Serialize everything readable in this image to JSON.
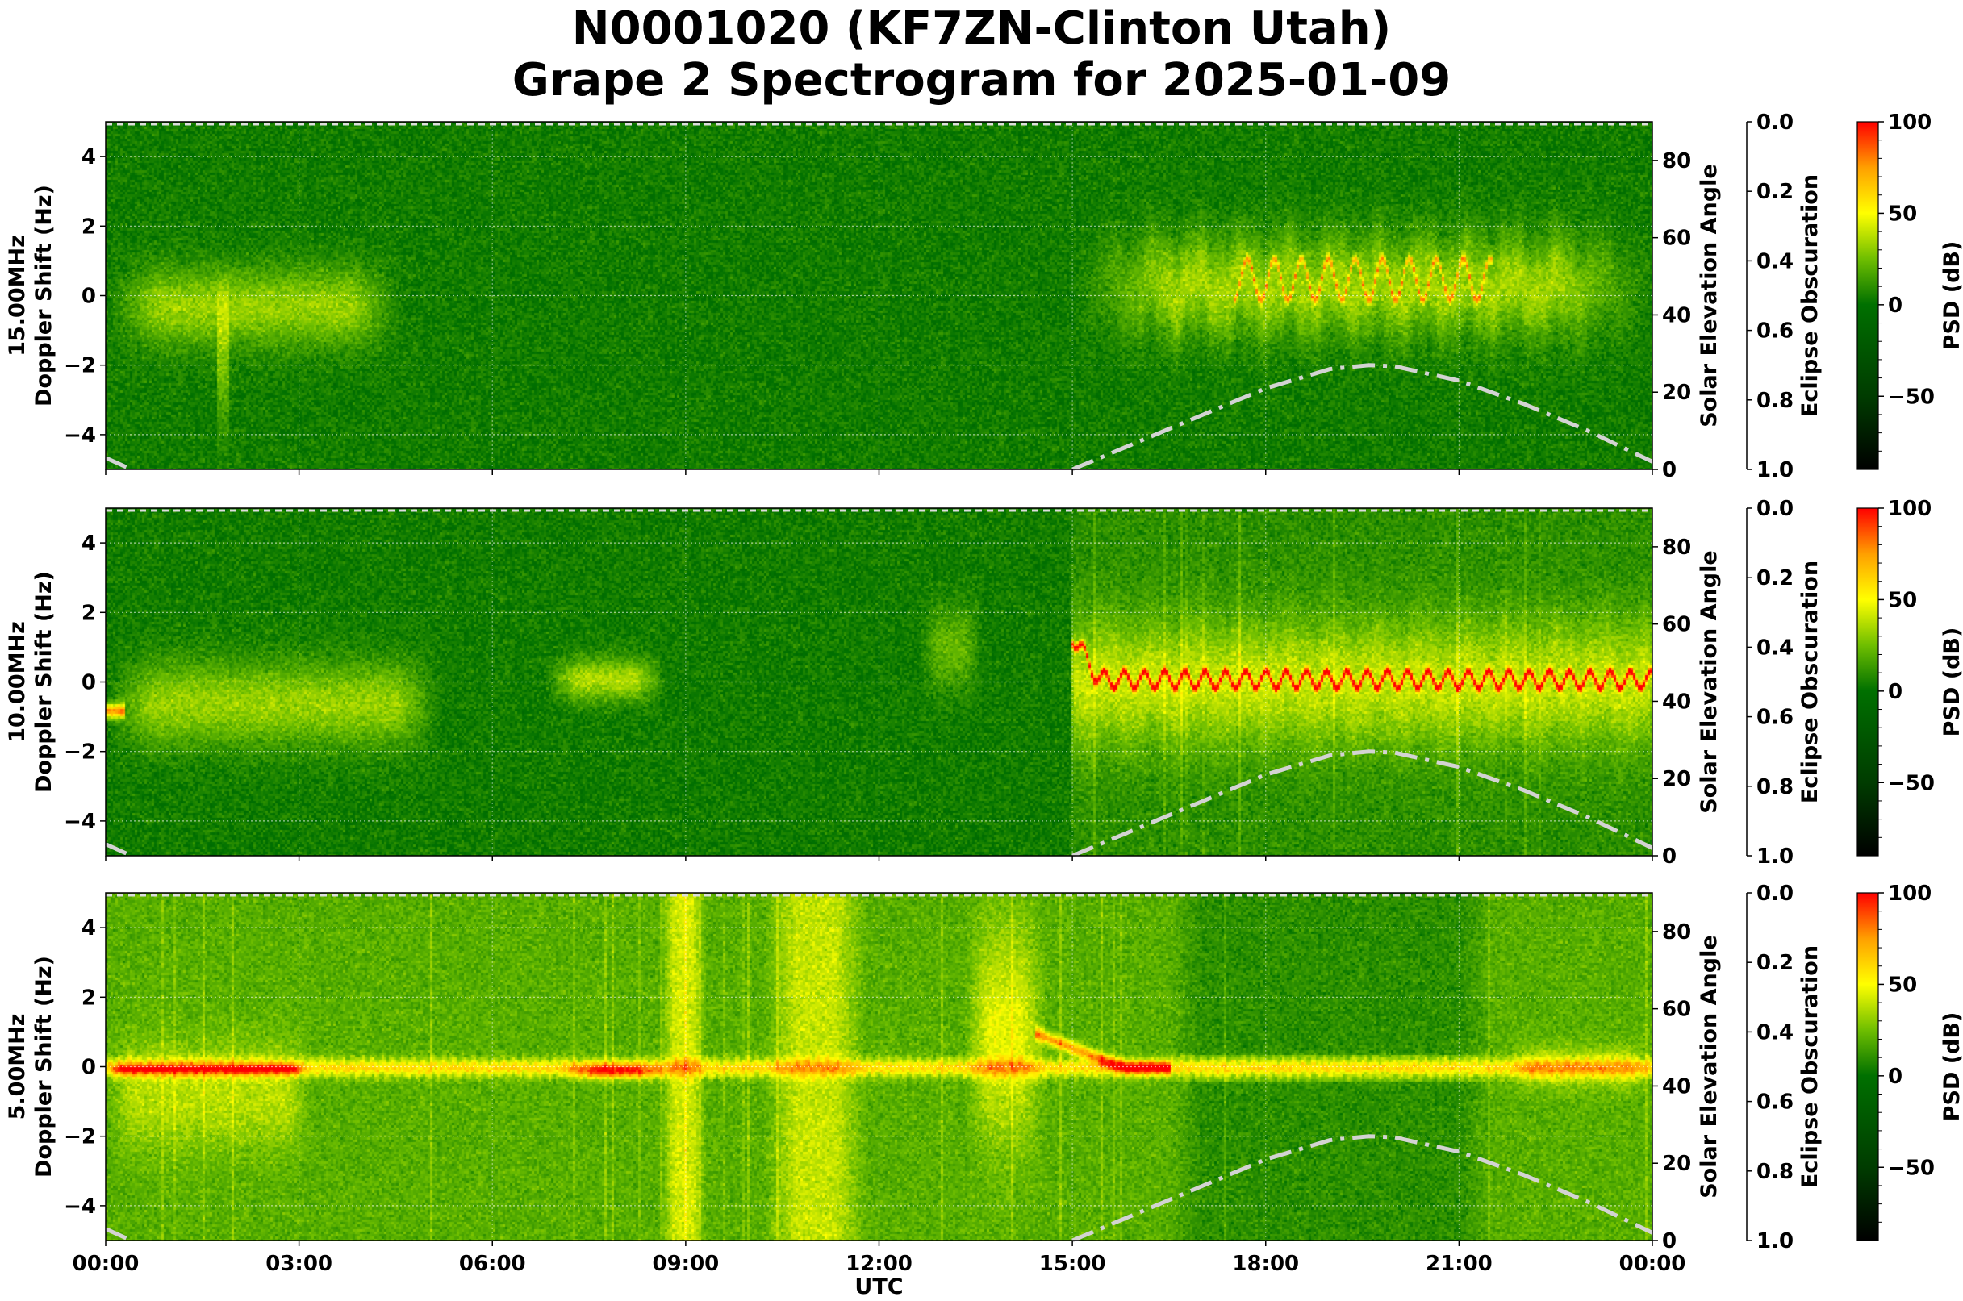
{
  "title": {
    "line1": "N0001020 (KF7ZN-Clinton Utah)",
    "line2": "Grape 2 Spectrogram for 2025-01-09"
  },
  "chart_data": {
    "type": "heatmap",
    "xlabel": "UTC",
    "x_ticks": [
      "00:00",
      "03:00",
      "06:00",
      "09:00",
      "12:00",
      "15:00",
      "18:00",
      "21:00",
      "00:00"
    ],
    "xlim_hours": [
      0,
      24
    ],
    "ylabel": "Doppler Shift (Hz)",
    "ylim": [
      -5,
      5
    ],
    "y_ticks": [
      "−4",
      "−2",
      "0",
      "2",
      "4"
    ],
    "grid": true,
    "right_axis": {
      "label": "Solar Elevation Angle",
      "ylim": [
        0,
        90
      ],
      "ticks": [
        "0",
        "20",
        "40",
        "60",
        "80"
      ]
    },
    "eclipse_axis": {
      "label": "Eclipse Obscuration",
      "ylim": [
        1.0,
        0.0
      ],
      "ticks": [
        "0.0",
        "0.2",
        "0.4",
        "0.6",
        "0.8",
        "1.0"
      ]
    },
    "colorbar": {
      "label": "PSD (dB)",
      "range": [
        -90,
        100
      ],
      "ticks": [
        "100",
        "50",
        "0",
        "−50"
      ],
      "colors": [
        "#000000",
        "#006400",
        "#ffff00",
        "#ff0000"
      ]
    },
    "solar_elevation": {
      "style": "dash-dot",
      "color": "#d3d3d3",
      "hours": [
        0,
        0.4,
        15.0,
        16.0,
        17.0,
        18.0,
        19.0,
        19.6,
        20.0,
        21.0,
        22.0,
        23.0,
        24.0
      ],
      "elevation": [
        3,
        0,
        0,
        7,
        14,
        21,
        26,
        27,
        26.7,
        23,
        17,
        10,
        2
      ]
    },
    "panels": [
      {
        "frequency": "15.00MHz",
        "ylabel": "Doppler Shift (Hz)"
      },
      {
        "frequency": "10.00MHz",
        "ylabel": "Doppler Shift (Hz)"
      },
      {
        "frequency": "5.00MHz",
        "ylabel": "Doppler Shift (Hz)"
      }
    ]
  }
}
